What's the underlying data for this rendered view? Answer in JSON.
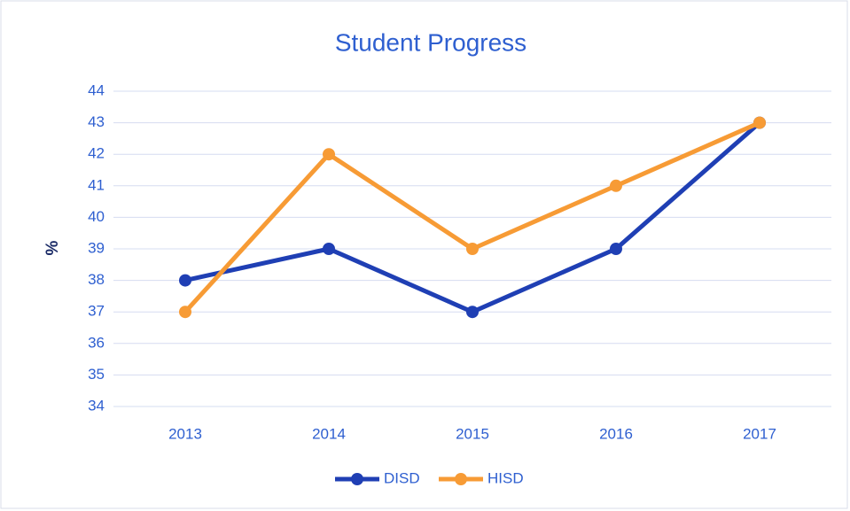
{
  "chart_data": {
    "type": "line",
    "title": "Student Progress",
    "y_label": "%",
    "categories": [
      "2013",
      "2014",
      "2015",
      "2016",
      "2017"
    ],
    "series": [
      {
        "name": "DISD",
        "color": "#1f3fb4",
        "values": [
          38,
          39,
          37,
          39,
          43
        ]
      },
      {
        "name": "HISD",
        "color": "#f79b35",
        "values": [
          37,
          42,
          39,
          41,
          43
        ]
      }
    ],
    "ylim": [
      34,
      44
    ],
    "yticks": [
      34,
      35,
      36,
      37,
      38,
      39,
      40,
      41,
      42,
      43,
      44
    ],
    "grid": true,
    "legend": "bottom"
  }
}
